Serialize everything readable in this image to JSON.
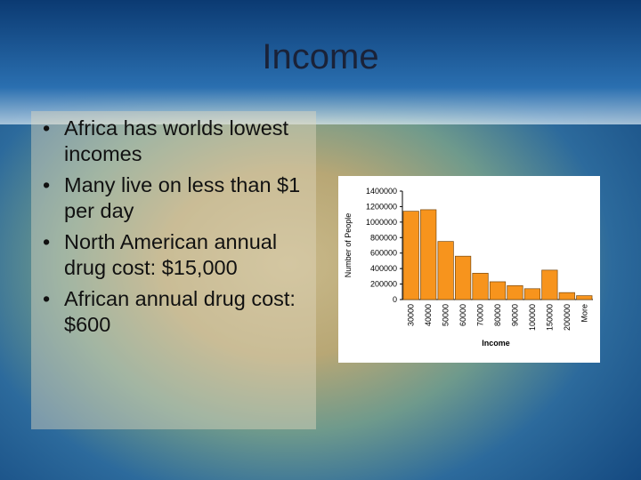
{
  "title": "Income",
  "bullets": [
    "Africa has worlds lowest incomes",
    "Many live on less than $1 per day",
    "North American annual drug cost: $15,000",
    "African annual drug cost: $600"
  ],
  "chart_data": {
    "type": "bar",
    "x_label": "Income",
    "y_label": "Number of People",
    "categories": [
      "30000",
      "40000",
      "50000",
      "60000",
      "70000",
      "80000",
      "90000",
      "100000",
      "150000",
      "200000",
      "More"
    ],
    "values": [
      1140000,
      1160000,
      750000,
      560000,
      340000,
      230000,
      180000,
      140000,
      380000,
      90000,
      50000
    ],
    "color": "#f7941d",
    "ylim": [
      0,
      1400000
    ],
    "yticks": [
      0,
      200000,
      400000,
      600000,
      800000,
      1000000,
      1200000,
      1400000
    ],
    "grid": false
  }
}
